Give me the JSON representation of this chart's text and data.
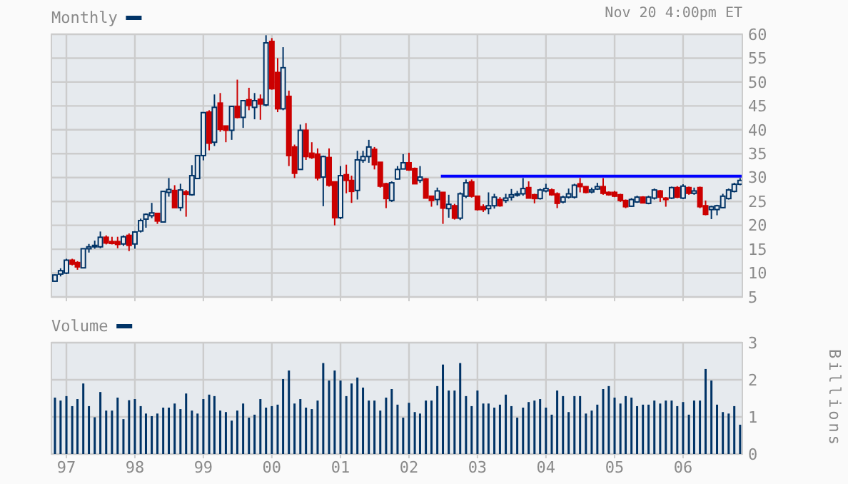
{
  "chart_data": [
    {
      "type": "candlestick",
      "tick_labels": "y",
      "legend": "top left",
      "grid": true,
      "annotations": [
        "Nov 20 4:00pm ET"
      ],
      "xlim": [
        "1996-10-13",
        "2006-11-13"
      ],
      "ylim": [
        5,
        60
      ],
      "yticks": [
        5,
        10,
        15,
        20,
        25,
        30,
        35,
        40,
        45,
        50,
        55,
        60
      ],
      "xticks": [
        {
          "value": "1997-01",
          "label": null
        },
        {
          "value": "1998-01",
          "label": null
        },
        {
          "value": "1999-01",
          "label": null
        },
        {
          "value": "2000-01",
          "label": null
        },
        {
          "value": "2001-01",
          "label": null
        },
        {
          "value": "2002-01",
          "label": null
        },
        {
          "value": "2003-01",
          "label": null
        },
        {
          "value": "2004-01",
          "label": null
        },
        {
          "value": "2005-01",
          "label": null
        },
        {
          "value": "2006-01",
          "label": null
        }
      ],
      "series": [
        {
          "name": "Monthly",
          "color": "#003366",
          "x": [
            "1996-11",
            "1996-12",
            "1997-01",
            "1997-02",
            "1997-03",
            "1997-04",
            "1997-05",
            "1997-06",
            "1997-07",
            "1997-08",
            "1997-09",
            "1997-10",
            "1997-11",
            "1997-12",
            "1998-01",
            "1998-02",
            "1998-03",
            "1998-04",
            "1998-05",
            "1998-06",
            "1998-07",
            "1998-08",
            "1998-09",
            "1998-10",
            "1998-11",
            "1998-12",
            "1999-01",
            "1999-02",
            "1999-03",
            "1999-04",
            "1999-05",
            "1999-06",
            "1999-07",
            "1999-08",
            "1999-09",
            "1999-10",
            "1999-11",
            "1999-12",
            "2000-01",
            "2000-02",
            "2000-03",
            "2000-04",
            "2000-05",
            "2000-06",
            "2000-07",
            "2000-08",
            "2000-09",
            "2000-10",
            "2000-11",
            "2000-12",
            "2001-01",
            "2001-02",
            "2001-03",
            "2001-04",
            "2001-05",
            "2001-06",
            "2001-07",
            "2001-08",
            "2001-09",
            "2001-10",
            "2001-11",
            "2001-12",
            "2002-01",
            "2002-02",
            "2002-03",
            "2002-04",
            "2002-05",
            "2002-06",
            "2002-07",
            "2002-08",
            "2002-09",
            "2002-10",
            "2002-11",
            "2002-12",
            "2003-01",
            "2003-02",
            "2003-03",
            "2003-04",
            "2003-05",
            "2003-06",
            "2003-07",
            "2003-08",
            "2003-09",
            "2003-10",
            "2003-11",
            "2003-12",
            "2004-01",
            "2004-02",
            "2004-03",
            "2004-04",
            "2004-05",
            "2004-06",
            "2004-07",
            "2004-08",
            "2004-09",
            "2004-10",
            "2004-11",
            "2004-12",
            "2005-01",
            "2005-02",
            "2005-03",
            "2005-04",
            "2005-05",
            "2005-06",
            "2005-07",
            "2005-08",
            "2005-09",
            "2005-10",
            "2005-11",
            "2005-12",
            "2006-01",
            "2006-02",
            "2006-03",
            "2006-04",
            "2006-05",
            "2006-06",
            "2006-07",
            "2006-08",
            "2006-09",
            "2006-10",
            "2006-11"
          ],
          "ohlc": [
            [
              8.3,
              9.7,
              8.2,
              9.6
            ],
            [
              9.8,
              11.0,
              9.3,
              10.5
            ],
            [
              10.0,
              13.0,
              9.8,
              12.7
            ],
            [
              12.7,
              13.0,
              11.6,
              11.9
            ],
            [
              12.2,
              12.5,
              10.7,
              11.3
            ],
            [
              11.1,
              15.1,
              11.1,
              15.1
            ],
            [
              15.1,
              16.1,
              14.3,
              15.5
            ],
            [
              15.5,
              16.8,
              15.1,
              15.8
            ],
            [
              15.5,
              18.7,
              15.2,
              17.5
            ],
            [
              17.5,
              17.9,
              16.0,
              16.3
            ],
            [
              16.6,
              17.6,
              16.0,
              16.2
            ],
            [
              16.6,
              17.6,
              15.2,
              16.0
            ],
            [
              16.1,
              17.9,
              15.7,
              17.6
            ],
            [
              17.9,
              18.3,
              14.6,
              15.8
            ],
            [
              16.1,
              18.8,
              15.1,
              18.6
            ],
            [
              18.8,
              21.4,
              18.5,
              21.0
            ],
            [
              21.3,
              22.5,
              19.5,
              22.3
            ],
            [
              22.0,
              24.7,
              21.5,
              22.6
            ],
            [
              22.5,
              22.5,
              20.3,
              20.9
            ],
            [
              20.7,
              27.1,
              20.7,
              27.1
            ],
            [
              26.9,
              29.9,
              26.0,
              27.5
            ],
            [
              27.3,
              28.4,
              23.7,
              23.7
            ],
            [
              23.7,
              28.7,
              23.0,
              27.4
            ],
            [
              27.0,
              27.4,
              21.8,
              26.5
            ],
            [
              26.4,
              32.6,
              26.2,
              30.4
            ],
            [
              29.8,
              34.6,
              29.8,
              34.6
            ],
            [
              34.6,
              43.6,
              33.6,
              43.6
            ],
            [
              43.7,
              44.1,
              35.7,
              37.2
            ],
            [
              37.4,
              47.4,
              36.6,
              44.7
            ],
            [
              45.6,
              47.7,
              39.6,
              40.1
            ],
            [
              40.8,
              40.8,
              37.4,
              39.9
            ],
            [
              39.9,
              44.9,
              37.9,
              44.9
            ],
            [
              44.9,
              50.5,
              42.4,
              42.6
            ],
            [
              42.6,
              46.1,
              40.4,
              46.1
            ],
            [
              46.3,
              48.8,
              44.1,
              45.1
            ],
            [
              44.7,
              47.7,
              42.2,
              46.1
            ],
            [
              46.4,
              47.4,
              42.1,
              45.4
            ],
            [
              45.2,
              59.8,
              44.9,
              58.2
            ],
            [
              58.5,
              59.2,
              48.4,
              48.6
            ],
            [
              52.0,
              55.0,
              43.7,
              44.4
            ],
            [
              44.4,
              57.3,
              44.1,
              53.0
            ],
            [
              47.0,
              48.2,
              32.4,
              34.6
            ],
            [
              36.4,
              36.9,
              29.9,
              30.9
            ],
            [
              31.7,
              41.1,
              31.7,
              39.9
            ],
            [
              39.9,
              41.4,
              33.7,
              34.4
            ],
            [
              35.1,
              37.4,
              33.9,
              34.2
            ],
            [
              34.9,
              36.1,
              29.4,
              29.9
            ],
            [
              30.1,
              34.6,
              24.0,
              34.4
            ],
            [
              34.2,
              36.1,
              28.1,
              28.4
            ],
            [
              29.1,
              29.1,
              20.0,
              21.6
            ],
            [
              21.6,
              32.4,
              21.3,
              30.4
            ],
            [
              30.6,
              32.7,
              26.7,
              29.4
            ],
            [
              29.4,
              30.4,
              24.7,
              27.1
            ],
            [
              27.3,
              35.6,
              25.4,
              33.7
            ],
            [
              33.6,
              35.6,
              33.1,
              34.4
            ],
            [
              34.4,
              37.9,
              33.1,
              36.4
            ],
            [
              35.9,
              36.4,
              31.7,
              32.7
            ],
            [
              33.2,
              33.2,
              27.9,
              28.2
            ],
            [
              28.7,
              28.9,
              23.6,
              25.6
            ],
            [
              25.2,
              29.2,
              24.9,
              28.9
            ],
            [
              29.7,
              32.4,
              29.6,
              31.7
            ],
            [
              31.8,
              34.9,
              31.8,
              33.1
            ],
            [
              33.1,
              35.2,
              31.4,
              31.6
            ],
            [
              31.9,
              32.1,
              28.7,
              28.7
            ],
            [
              29.4,
              32.4,
              28.9,
              30.1
            ],
            [
              29.7,
              29.9,
              25.7,
              25.7
            ],
            [
              26.1,
              26.1,
              23.9,
              25.2
            ],
            [
              25.4,
              27.9,
              24.2,
              27.2
            ],
            [
              26.9,
              26.9,
              20.3,
              23.6
            ],
            [
              23.5,
              26.4,
              21.6,
              24.4
            ],
            [
              24.1,
              24.5,
              21.2,
              21.5
            ],
            [
              21.5,
              26.9,
              21.1,
              26.6
            ],
            [
              26.1,
              29.6,
              25.7,
              28.9
            ],
            [
              29.1,
              29.6,
              25.8,
              26.1
            ],
            [
              26.1,
              26.1,
              23.1,
              23.3
            ],
            [
              23.9,
              24.4,
              22.8,
              23.3
            ],
            [
              23.5,
              26.9,
              22.3,
              24.1
            ],
            [
              24.1,
              26.6,
              23.5,
              25.9
            ],
            [
              25.4,
              25.9,
              23.9,
              24.1
            ],
            [
              25.2,
              26.6,
              24.7,
              25.7
            ],
            [
              25.9,
              27.6,
              25.2,
              26.4
            ],
            [
              26.4,
              27.2,
              26.0,
              26.6
            ],
            [
              26.6,
              29.9,
              26.2,
              27.7
            ],
            [
              27.9,
              29.2,
              25.7,
              25.7
            ],
            [
              26.4,
              26.6,
              24.6,
              25.6
            ],
            [
              25.6,
              27.7,
              25.4,
              27.4
            ],
            [
              27.2,
              28.7,
              26.9,
              27.7
            ],
            [
              27.4,
              27.7,
              26.2,
              26.4
            ],
            [
              26.6,
              26.9,
              23.6,
              24.6
            ],
            [
              24.9,
              26.2,
              24.6,
              25.9
            ],
            [
              25.9,
              27.7,
              25.6,
              26.6
            ],
            [
              25.9,
              28.7,
              25.6,
              28.4
            ],
            [
              28.7,
              29.9,
              26.9,
              28.1
            ],
            [
              28.1,
              28.2,
              26.7,
              26.9
            ],
            [
              27.0,
              27.9,
              26.7,
              27.4
            ],
            [
              27.6,
              28.9,
              27.4,
              28.1
            ],
            [
              28.1,
              29.9,
              26.4,
              26.7
            ],
            [
              26.9,
              27.1,
              26.2,
              26.4
            ],
            [
              26.9,
              27.2,
              25.9,
              26.1
            ],
            [
              26.4,
              26.6,
              24.9,
              25.2
            ],
            [
              25.2,
              25.4,
              23.6,
              23.9
            ],
            [
              24.0,
              25.7,
              23.9,
              25.4
            ],
            [
              24.9,
              26.2,
              24.7,
              25.9
            ],
            [
              25.9,
              26.1,
              24.6,
              24.7
            ],
            [
              24.6,
              26.2,
              24.4,
              25.9
            ],
            [
              25.7,
              27.7,
              25.4,
              27.4
            ],
            [
              27.2,
              27.4,
              24.9,
              25.9
            ],
            [
              25.7,
              25.9,
              23.9,
              25.4
            ],
            [
              25.7,
              28.1,
              25.5,
              27.9
            ],
            [
              27.9,
              28.2,
              25.7,
              25.9
            ],
            [
              25.7,
              28.6,
              25.5,
              28.2
            ],
            [
              27.9,
              28.1,
              26.4,
              26.7
            ],
            [
              26.7,
              27.9,
              26.4,
              27.2
            ],
            [
              27.9,
              28.1,
              23.6,
              23.9
            ],
            [
              24.1,
              25.2,
              22.1,
              22.3
            ],
            [
              23.3,
              24.1,
              21.3,
              23.9
            ],
            [
              23.3,
              24.3,
              22.1,
              24.1
            ],
            [
              23.7,
              26.6,
              23.6,
              26.1
            ],
            [
              25.6,
              27.7,
              25.4,
              27.4
            ],
            [
              27.1,
              28.9,
              26.9,
              28.6
            ],
            [
              28.6,
              29.9,
              28.4,
              29.4
            ]
          ],
          "colors": [
            "#003366",
            "#003366",
            "#003366",
            "#cc0000",
            "#cc0000",
            "#003366",
            "#003366",
            "#003366",
            "#003366",
            "#cc0000",
            "#cc0000",
            "#cc0000",
            "#003366",
            "#cc0000",
            "#003366",
            "#003366",
            "#003366",
            "#003366",
            "#cc0000",
            "#003366",
            "#003366",
            "#cc0000",
            "#003366",
            "#cc0000",
            "#003366",
            "#003366",
            "#003366",
            "#cc0000",
            "#003366",
            "#cc0000",
            "#cc0000",
            "#003366",
            "#cc0000",
            "#003366",
            "#cc0000",
            "#003366",
            "#cc0000",
            "#003366",
            "#cc0000",
            "#cc0000",
            "#003366",
            "#cc0000",
            "#cc0000",
            "#003366",
            "#cc0000",
            "#cc0000",
            "#cc0000",
            "#003366",
            "#cc0000",
            "#cc0000",
            "#003366",
            "#cc0000",
            "#cc0000",
            "#003366",
            "#003366",
            "#003366",
            "#cc0000",
            "#cc0000",
            "#cc0000",
            "#003366",
            "#003366",
            "#003366",
            "#cc0000",
            "#cc0000",
            "#003366",
            "#cc0000",
            "#cc0000",
            "#003366",
            "#cc0000",
            "#003366",
            "#cc0000",
            "#003366",
            "#003366",
            "#cc0000",
            "#cc0000",
            "#cc0000",
            "#003366",
            "#003366",
            "#cc0000",
            "#003366",
            "#003366",
            "#003366",
            "#003366",
            "#cc0000",
            "#cc0000",
            "#003366",
            "#003366",
            "#cc0000",
            "#cc0000",
            "#003366",
            "#003366",
            "#003366",
            "#cc0000",
            "#cc0000",
            "#003366",
            "#003366",
            "#cc0000",
            "#cc0000",
            "#cc0000",
            "#cc0000",
            "#cc0000",
            "#003366",
            "#003366",
            "#cc0000",
            "#003366",
            "#003366",
            "#cc0000",
            "#cc0000",
            "#003366",
            "#cc0000",
            "#003366",
            "#cc0000",
            "#003366",
            "#cc0000",
            "#cc0000",
            "#003366",
            "#003366",
            "#003366",
            "#003366",
            "#003366",
            "#003366"
          ]
        },
        {
          "type": "line",
          "color": "#0000ff",
          "x": [
            "2002-06-20",
            "2006-11-13"
          ],
          "values": [
            30.3,
            30.3
          ]
        }
      ]
    },
    {
      "type": "bar",
      "legend": "top left",
      "grid": true,
      "ylabel": "Billions",
      "ylim": [
        0,
        3
      ],
      "yticks": [
        0,
        1,
        2,
        3
      ],
      "xlim": [
        "1996-10-13",
        "2006-11-13"
      ],
      "xticks": [
        {
          "value": "1997-01",
          "label": "97"
        },
        {
          "value": "1998-01",
          "label": "98"
        },
        {
          "value": "1999-01",
          "label": "99"
        },
        {
          "value": "2000-01",
          "label": "00"
        },
        {
          "value": "2001-01",
          "label": "01"
        },
        {
          "value": "2002-01",
          "label": "02"
        },
        {
          "value": "2003-01",
          "label": "03"
        },
        {
          "value": "2004-01",
          "label": "04"
        },
        {
          "value": "2005-01",
          "label": "05"
        },
        {
          "value": "2006-01",
          "label": "06"
        }
      ],
      "x": [
        "1996-11",
        "1996-12",
        "1997-01",
        "1997-02",
        "1997-03",
        "1997-04",
        "1997-05",
        "1997-06",
        "1997-07",
        "1997-08",
        "1997-09",
        "1997-10",
        "1997-11",
        "1997-12",
        "1998-01",
        "1998-02",
        "1998-03",
        "1998-04",
        "1998-05",
        "1998-06",
        "1998-07",
        "1998-08",
        "1998-09",
        "1998-10",
        "1998-11",
        "1998-12",
        "1999-01",
        "1999-02",
        "1999-03",
        "1999-04",
        "1999-05",
        "1999-06",
        "1999-07",
        "1999-08",
        "1999-09",
        "1999-10",
        "1999-11",
        "1999-12",
        "2000-01",
        "2000-02",
        "2000-03",
        "2000-04",
        "2000-05",
        "2000-06",
        "2000-07",
        "2000-08",
        "2000-09",
        "2000-10",
        "2000-11",
        "2000-12",
        "2001-01",
        "2001-02",
        "2001-03",
        "2001-04",
        "2001-05",
        "2001-06",
        "2001-07",
        "2001-08",
        "2001-09",
        "2001-10",
        "2001-11",
        "2001-12",
        "2002-01",
        "2002-02",
        "2002-03",
        "2002-04",
        "2002-05",
        "2002-06",
        "2002-07",
        "2002-08",
        "2002-09",
        "2002-10",
        "2002-11",
        "2002-12",
        "2003-01",
        "2003-02",
        "2003-03",
        "2003-04",
        "2003-05",
        "2003-06",
        "2003-07",
        "2003-08",
        "2003-09",
        "2003-10",
        "2003-11",
        "2003-12",
        "2004-01",
        "2004-02",
        "2004-03",
        "2004-04",
        "2004-05",
        "2004-06",
        "2004-07",
        "2004-08",
        "2004-09",
        "2004-10",
        "2004-11",
        "2004-12",
        "2005-01",
        "2005-02",
        "2005-03",
        "2005-04",
        "2005-05",
        "2005-06",
        "2005-07",
        "2005-08",
        "2005-09",
        "2005-10",
        "2005-11",
        "2005-12",
        "2006-01",
        "2006-02",
        "2006-03",
        "2006-04",
        "2006-05",
        "2006-06",
        "2006-07",
        "2006-08",
        "2006-09",
        "2006-10",
        "2006-11"
      ],
      "series": [
        {
          "name": "Volume",
          "color": "#003366",
          "values": [
            1.52,
            1.44,
            1.56,
            1.29,
            1.48,
            1.9,
            1.29,
            0.99,
            1.67,
            1.17,
            1.17,
            1.52,
            0.94,
            1.45,
            1.48,
            1.29,
            1.09,
            1.02,
            1.09,
            1.25,
            1.25,
            1.36,
            1.21,
            1.63,
            1.17,
            1.09,
            1.48,
            1.6,
            1.56,
            1.17,
            1.13,
            0.9,
            1.17,
            1.36,
            0.98,
            1.06,
            1.48,
            1.25,
            1.29,
            1.33,
            2.02,
            2.25,
            1.36,
            1.48,
            1.25,
            1.21,
            1.44,
            2.45,
            1.98,
            2.25,
            1.98,
            1.56,
            1.9,
            2.06,
            1.79,
            1.44,
            1.44,
            1.17,
            1.52,
            1.75,
            1.33,
            0.98,
            1.38,
            1.13,
            1.09,
            1.44,
            1.44,
            1.83,
            2.41,
            1.71,
            1.71,
            2.45,
            1.56,
            1.29,
            1.71,
            1.36,
            1.36,
            1.25,
            1.33,
            1.6,
            1.29,
            0.98,
            1.25,
            1.4,
            1.44,
            1.48,
            1.25,
            1.06,
            1.71,
            1.56,
            1.13,
            1.56,
            1.56,
            1.09,
            1.17,
            1.33,
            1.75,
            1.83,
            1.52,
            1.36,
            1.56,
            1.52,
            1.29,
            1.33,
            1.33,
            1.44,
            1.36,
            1.44,
            1.44,
            1.29,
            1.4,
            1.06,
            1.44,
            1.44,
            2.29,
            1.98,
            1.33,
            1.13,
            1.09,
            1.29,
            0.79
          ]
        }
      ]
    }
  ]
}
